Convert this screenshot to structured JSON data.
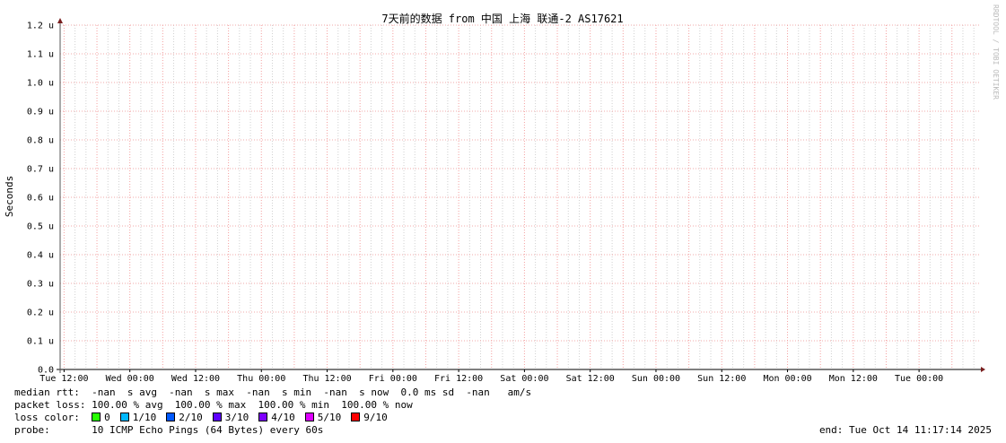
{
  "chart_data": {
    "type": "line",
    "title": "7天前的数据 from 中国 上海 联通-2 AS17621",
    "ylabel": "Seconds",
    "xlabel": "",
    "ylim": [
      0,
      1.2e-06
    ],
    "yticks": [
      "0.0",
      "0.1 u",
      "0.2 u",
      "0.3 u",
      "0.4 u",
      "0.5 u",
      "0.6 u",
      "0.7 u",
      "0.8 u",
      "0.9 u",
      "1.0 u",
      "1.1 u",
      "1.2 u"
    ],
    "xticks": [
      "Tue 12:00",
      "Wed 00:00",
      "Wed 12:00",
      "Thu 00:00",
      "Thu 12:00",
      "Fri 00:00",
      "Fri 12:00",
      "Sat 00:00",
      "Sat 12:00",
      "Sun 00:00",
      "Sun 12:00",
      "Mon 00:00",
      "Mon 12:00",
      "Tue 00:00"
    ],
    "xrange": [
      "Tue Oct 7 11:17:14 2025",
      "Tue Oct 14 11:17:14 2025"
    ],
    "grid": true,
    "series": [],
    "watermark": "RRDTOOL / TOBI OETIKER"
  },
  "legend": {
    "median_rtt": "median rtt:  -nan  s avg  -nan  s max  -nan  s min  -nan  s now  0.0 ms sd  -nan   am/s",
    "packet_loss": "packet loss: 100.00 % avg  100.00 % max  100.00 % min  100.00 % now",
    "loss_color_label": "loss color:  ",
    "loss_colors": [
      {
        "label": "0",
        "color": "#26ff00"
      },
      {
        "label": "1/10",
        "color": "#00b8ff"
      },
      {
        "label": "2/10",
        "color": "#0059ff"
      },
      {
        "label": "3/10",
        "color": "#5e00ff"
      },
      {
        "label": "4/10",
        "color": "#7e00ff"
      },
      {
        "label": "5/10",
        "color": "#dd00ff"
      },
      {
        "label": "9/10",
        "color": "#ff0000"
      }
    ],
    "probe": "probe:       10 ICMP Echo Pings (64 Bytes) every 60s",
    "end": "end: Tue Oct 14 11:17:14 2025"
  }
}
